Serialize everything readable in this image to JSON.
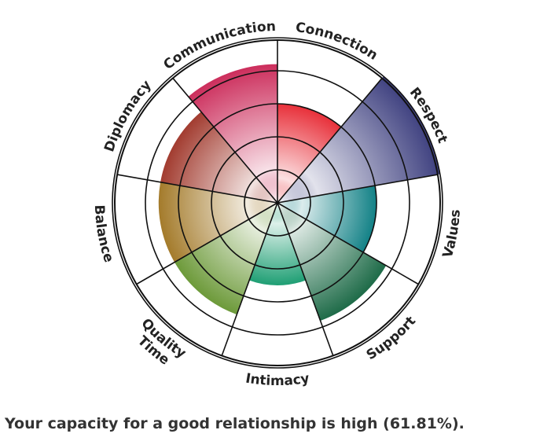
{
  "chart_data": {
    "type": "polar-area",
    "scale_rings": 5,
    "scale_max": 5,
    "categories": [
      {
        "label": "Connection",
        "value": 3.0,
        "color": "#e8303a"
      },
      {
        "label": "Respect",
        "value": 5.0,
        "color": "#3f4180"
      },
      {
        "label": "Values",
        "value": 3.0,
        "color": "#128186"
      },
      {
        "label": "Support",
        "value": 3.8,
        "color": "#1e6b48"
      },
      {
        "label": "Intimacy",
        "value": 2.5,
        "color": "#1f9f74"
      },
      {
        "label": "Quality\nTime",
        "value": 3.6,
        "color": "#6d9a3a"
      },
      {
        "label": "Balance",
        "value": 3.6,
        "color": "#a47b2b"
      },
      {
        "label": "Diplomacy",
        "value": 3.6,
        "color": "#a23c30"
      },
      {
        "label": "Communication",
        "value": 4.2,
        "color": "#cc2e5c"
      }
    ]
  },
  "result_text": "Your capacity for a good relationship is high (61.81%)."
}
